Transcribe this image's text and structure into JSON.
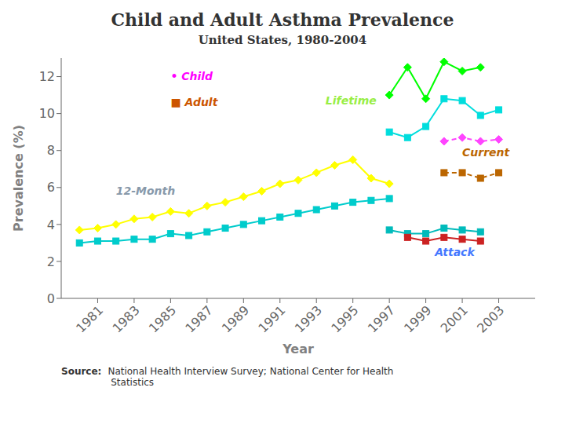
{
  "chart_data": {
    "type": "line",
    "title": "Child and Adult Asthma Prevalence",
    "subtitle": "United States, 1980-2004",
    "x_label": "Year",
    "y_label": "Prevalence (%)",
    "source_label": "Source:",
    "source_text": "National Health Interview Survey; National Center for Health\n Statistics",
    "xlim": [
      1979,
      2005
    ],
    "xticks": [
      1981,
      1983,
      1985,
      1987,
      1989,
      1991,
      1993,
      1995,
      1997,
      1999,
      2001,
      2003
    ],
    "ylim": [
      0,
      13
    ],
    "yticks": [
      0,
      2,
      4,
      6,
      8,
      10,
      12
    ],
    "grid": false,
    "series": [
      {
        "x": [
          1980,
          1981,
          1982,
          1983,
          1984,
          1985,
          1986,
          1987,
          1988,
          1989,
          1990,
          1991,
          1992,
          1993,
          1994,
          1995,
          1996,
          1997
        ],
        "values": [
          3.7,
          3.8,
          4.0,
          4.3,
          4.4,
          4.7,
          4.6,
          5.0,
          5.2,
          5.5,
          5.8,
          6.2,
          6.4,
          6.8,
          7.2,
          7.5,
          6.5,
          6.2
        ],
        "color": "#ffff00",
        "marker": "diamond",
        "line_style": "solid"
      },
      {
        "x": [
          1980,
          1981,
          1982,
          1983,
          1984,
          1985,
          1986,
          1987,
          1988,
          1989,
          1990,
          1991,
          1992,
          1993,
          1994,
          1995,
          1996,
          1997
        ],
        "values": [
          3.0,
          3.1,
          3.1,
          3.2,
          3.2,
          3.5,
          3.4,
          3.6,
          3.8,
          4.0,
          4.2,
          4.4,
          4.6,
          4.8,
          5.0,
          5.2,
          5.3,
          5.4
        ],
        "color": "#00cccc",
        "marker": "square",
        "line_style": "solid"
      },
      {
        "x": [
          1997,
          1998,
          1999,
          2000,
          2001,
          2002
        ],
        "values": [
          11.0,
          12.5,
          10.8,
          12.8,
          12.3,
          12.5
        ],
        "color": "#00ff00",
        "marker": "diamond",
        "line_style": "solid"
      },
      {
        "x": [
          1997,
          1998,
          1999,
          2000,
          2001,
          2002,
          2003
        ],
        "values": [
          9.0,
          8.7,
          9.3,
          10.8,
          10.7,
          9.9,
          10.2
        ],
        "color": "#00dddd",
        "marker": "square",
        "line_style": "solid"
      },
      {
        "x": [
          2000,
          2001,
          2002,
          2003
        ],
        "values": [
          8.5,
          8.7,
          8.5,
          8.6
        ],
        "color": "#ff44ff",
        "marker": "diamond",
        "line_style": "dashed"
      },
      {
        "x": [
          2000,
          2001,
          2002,
          2003
        ],
        "values": [
          6.8,
          6.8,
          6.5,
          6.8
        ],
        "color": "#bb6600",
        "marker": "square",
        "line_style": "dashed"
      },
      {
        "x": [
          1997,
          1998,
          1999,
          2000,
          2001,
          2002
        ],
        "values": [
          3.7,
          3.5,
          3.5,
          3.8,
          3.7,
          3.6
        ],
        "color": "#00bbbb",
        "marker": "square",
        "line_style": "solid"
      },
      {
        "x": [
          1998,
          1999,
          2000,
          2001,
          2002
        ],
        "values": [
          3.3,
          3.1,
          3.3,
          3.2,
          3.1
        ],
        "color": "#cc2222",
        "marker": "square",
        "line_style": "solid"
      }
    ],
    "annotations": [
      {
        "text": "12-Month",
        "x": 1982,
        "y": 5.6,
        "color": "#8899aa"
      },
      {
        "text": "Lifetime",
        "x": 1993.5,
        "y": 10.5,
        "color": "#99ee44"
      },
      {
        "text": "Current",
        "x": 2001,
        "y": 7.7,
        "color": "#bb6600"
      },
      {
        "text": "Attack",
        "x": 1999.5,
        "y": 2.3,
        "color": "#4477ff"
      },
      {
        "text": "• Child",
        "x": 1985,
        "y": 11.8,
        "color": "#ff00ff"
      },
      {
        "text": "■ Adult",
        "x": 1985,
        "y": 10.4,
        "color": "#cc5500"
      }
    ]
  }
}
